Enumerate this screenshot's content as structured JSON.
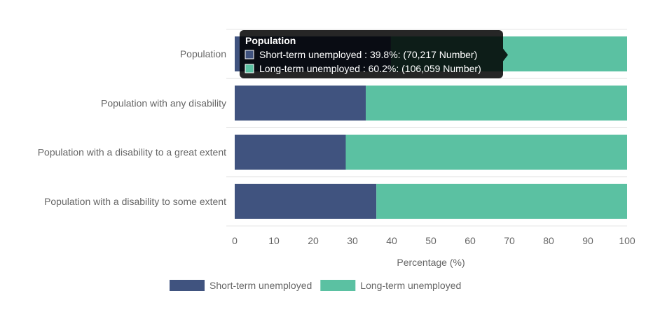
{
  "chart_data": {
    "type": "bar",
    "orientation": "horizontal",
    "stacked": true,
    "categories": [
      "Population",
      "Population with any disability",
      "Population with a disability to a great extent",
      "Population with a disability to some extent"
    ],
    "series": [
      {
        "name": "Short-term unemployed",
        "color": "#40537f",
        "values": [
          39.8,
          33.4,
          28.3,
          36.1
        ]
      },
      {
        "name": "Long-term unemployed",
        "color": "#5bc1a2",
        "values": [
          60.2,
          66.6,
          71.7,
          63.9
        ]
      }
    ],
    "xlabel": "Percentage (%)",
    "xlim": [
      0,
      100
    ],
    "xticks": [
      0,
      10,
      20,
      30,
      40,
      50,
      60,
      70,
      80,
      90,
      100
    ],
    "legend_position": "bottom",
    "tooltip": {
      "title": "Population",
      "lines": [
        "Short-term unemployed : 39.8%: (70,217 Number)",
        "Long-term unemployed : 60.2%: (106,059 Number)"
      ]
    }
  }
}
